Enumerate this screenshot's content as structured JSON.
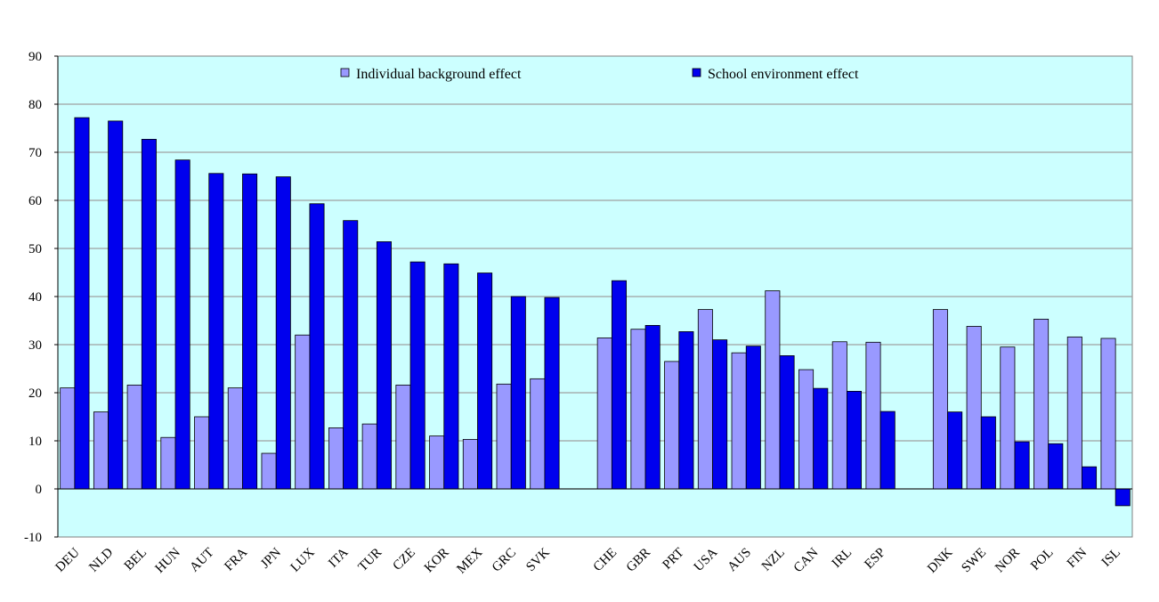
{
  "chart_data": {
    "type": "bar",
    "categories": [
      "DEU",
      "NLD",
      "BEL",
      "HUN",
      "AUT",
      "FRA",
      "JPN",
      "LUX",
      "ITA",
      "TUR",
      "CZE",
      "KOR",
      "MEX",
      "GRC",
      "SVK",
      "",
      "CHE",
      "GBR",
      "PRT",
      "USA",
      "AUS",
      "NZL",
      "CAN",
      "IRL",
      "ESP",
      "",
      "DNK",
      "SWE",
      "NOR",
      "POL",
      "FIN",
      "ISL"
    ],
    "series": [
      {
        "name": "Individual background effect",
        "color": "#9999ff",
        "values": [
          21,
          16,
          21.6,
          10.7,
          15,
          21,
          7.4,
          32,
          12.7,
          13.5,
          21.6,
          11,
          10.3,
          21.8,
          22.9,
          null,
          31.4,
          33.2,
          26.5,
          37.3,
          28.3,
          41.2,
          24.8,
          30.6,
          30.5,
          null,
          37.3,
          33.8,
          29.5,
          35.3,
          31.6,
          31.3
        ]
      },
      {
        "name": "School environment effect",
        "color": "#0000ee",
        "values": [
          77.2,
          76.5,
          72.7,
          68.4,
          65.6,
          65.5,
          64.9,
          59.3,
          55.8,
          51.4,
          47.2,
          46.8,
          44.9,
          40,
          39.8,
          null,
          43.3,
          34,
          32.7,
          31,
          29.7,
          27.7,
          20.9,
          20.3,
          16.1,
          null,
          16,
          15,
          9.8,
          9.4,
          4.6,
          -3.5
        ]
      }
    ],
    "yticks": [
      -10,
      0,
      10,
      20,
      30,
      40,
      50,
      60,
      70,
      80,
      90
    ],
    "ylim": [
      -10,
      90
    ],
    "grid": true,
    "legend_position": "top",
    "title": "",
    "xlabel": "",
    "ylabel": "",
    "background_color": "#ccffff"
  }
}
